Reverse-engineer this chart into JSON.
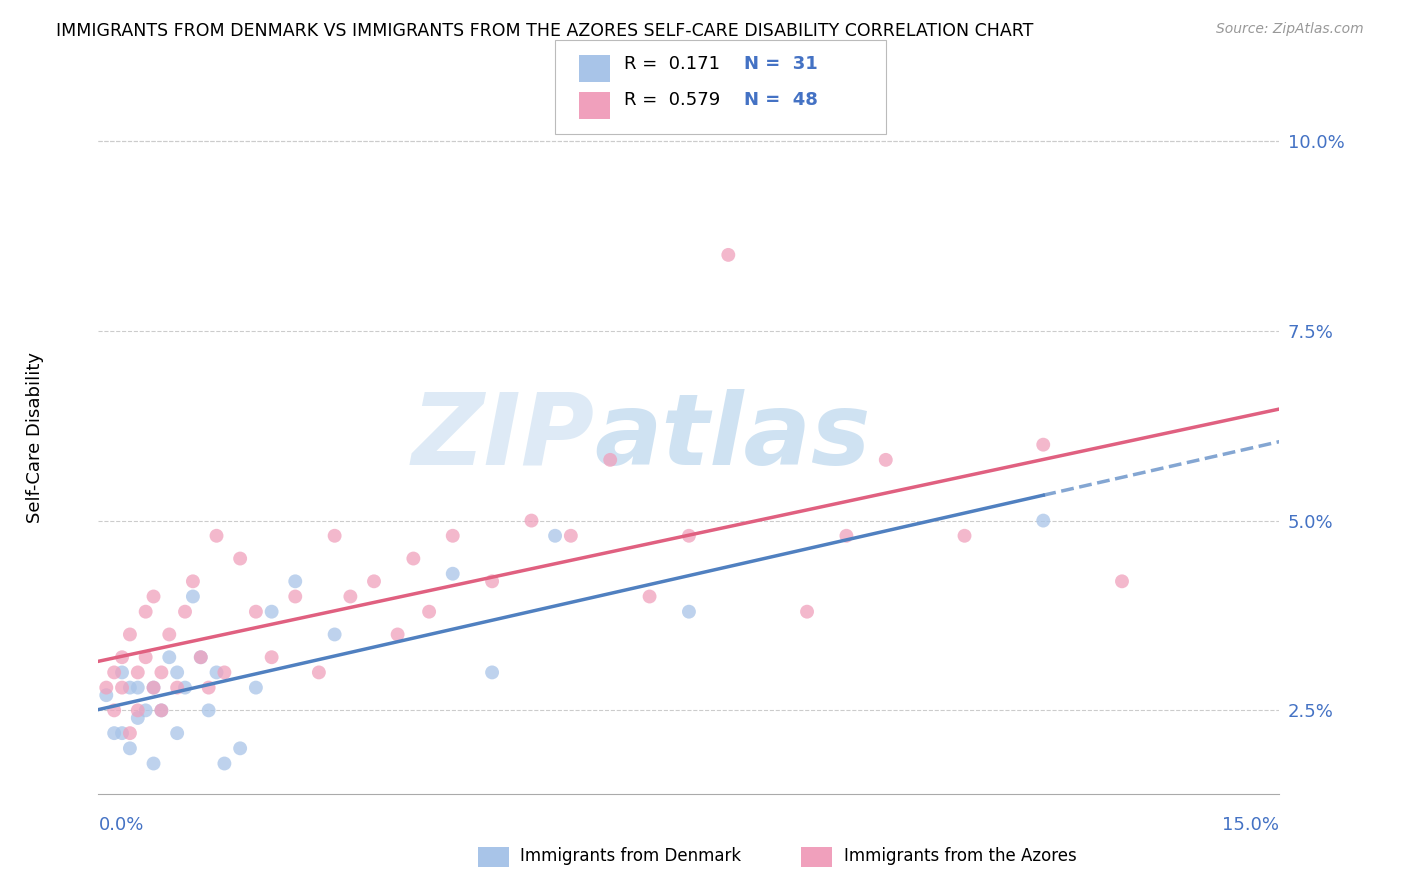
{
  "title": "IMMIGRANTS FROM DENMARK VS IMMIGRANTS FROM THE AZORES SELF-CARE DISABILITY CORRELATION CHART",
  "source": "Source: ZipAtlas.com",
  "ylabel": "Self-Care Disability",
  "ytick_labels": [
    "2.5%",
    "5.0%",
    "7.5%",
    "10.0%"
  ],
  "ytick_vals": [
    0.025,
    0.05,
    0.075,
    0.1
  ],
  "xlim": [
    0.0,
    0.15
  ],
  "ylim": [
    0.014,
    0.108
  ],
  "legend_r_denmark": "R =  0.171",
  "legend_n_denmark": "N =  31",
  "legend_r_azores": "R =  0.579",
  "legend_n_azores": "N =  48",
  "color_denmark": "#a8c4e8",
  "color_azores": "#f0a0bc",
  "color_trend_denmark": "#5080c0",
  "color_trend_azores": "#e06080",
  "denmark_x": [
    0.001,
    0.002,
    0.003,
    0.003,
    0.004,
    0.004,
    0.005,
    0.005,
    0.006,
    0.007,
    0.007,
    0.008,
    0.009,
    0.01,
    0.01,
    0.011,
    0.012,
    0.013,
    0.014,
    0.015,
    0.016,
    0.018,
    0.02,
    0.022,
    0.025,
    0.03,
    0.045,
    0.05,
    0.058,
    0.075,
    0.12
  ],
  "denmark_y": [
    0.027,
    0.022,
    0.03,
    0.022,
    0.028,
    0.02,
    0.028,
    0.024,
    0.025,
    0.028,
    0.018,
    0.025,
    0.032,
    0.03,
    0.022,
    0.028,
    0.04,
    0.032,
    0.025,
    0.03,
    0.018,
    0.02,
    0.028,
    0.038,
    0.042,
    0.035,
    0.043,
    0.03,
    0.048,
    0.038,
    0.05
  ],
  "azores_x": [
    0.001,
    0.002,
    0.002,
    0.003,
    0.003,
    0.004,
    0.004,
    0.005,
    0.005,
    0.006,
    0.006,
    0.007,
    0.007,
    0.008,
    0.008,
    0.009,
    0.01,
    0.011,
    0.012,
    0.013,
    0.014,
    0.015,
    0.016,
    0.018,
    0.02,
    0.022,
    0.025,
    0.028,
    0.03,
    0.032,
    0.035,
    0.038,
    0.04,
    0.042,
    0.045,
    0.05,
    0.055,
    0.06,
    0.065,
    0.07,
    0.075,
    0.08,
    0.09,
    0.095,
    0.1,
    0.11,
    0.12,
    0.13
  ],
  "azores_y": [
    0.028,
    0.03,
    0.025,
    0.032,
    0.028,
    0.035,
    0.022,
    0.03,
    0.025,
    0.038,
    0.032,
    0.04,
    0.028,
    0.03,
    0.025,
    0.035,
    0.028,
    0.038,
    0.042,
    0.032,
    0.028,
    0.048,
    0.03,
    0.045,
    0.038,
    0.032,
    0.04,
    0.03,
    0.048,
    0.04,
    0.042,
    0.035,
    0.045,
    0.038,
    0.048,
    0.042,
    0.05,
    0.048,
    0.058,
    0.04,
    0.048,
    0.085,
    0.038,
    0.048,
    0.058,
    0.048,
    0.06,
    0.042
  ],
  "watermark_zip": "ZIP",
  "watermark_atlas": "atlas"
}
